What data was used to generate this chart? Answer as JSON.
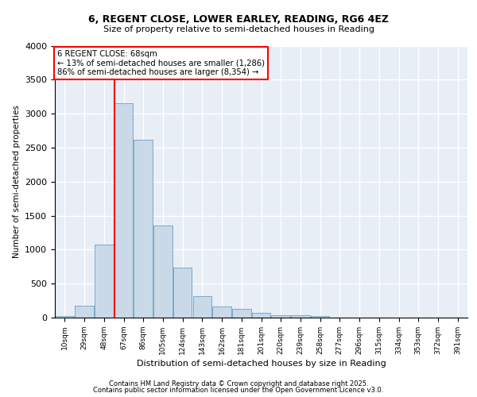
{
  "title1": "6, REGENT CLOSE, LOWER EARLEY, READING, RG6 4EZ",
  "title2": "Size of property relative to semi-detached houses in Reading",
  "xlabel": "Distribution of semi-detached houses by size in Reading",
  "ylabel": "Number of semi-detached properties",
  "bar_labels": [
    "10sqm",
    "29sqm",
    "48sqm",
    "67sqm",
    "86sqm",
    "105sqm",
    "124sqm",
    "143sqm",
    "162sqm",
    "181sqm",
    "201sqm",
    "220sqm",
    "239sqm",
    "258sqm",
    "277sqm",
    "296sqm",
    "315sqm",
    "334sqm",
    "353sqm",
    "372sqm",
    "391sqm"
  ],
  "bar_values": [
    20,
    170,
    1080,
    3150,
    2620,
    1360,
    740,
    310,
    160,
    130,
    70,
    35,
    30,
    20,
    0,
    0,
    0,
    0,
    0,
    0,
    0
  ],
  "bar_color": "#c9d9e8",
  "bar_edge_color": "#7aaac8",
  "background_color": "#e8eef6",
  "grid_color": "#ffffff",
  "vline_x_idx": 3,
  "vline_color": "red",
  "annotation_box_text": "6 REGENT CLOSE: 68sqm\n← 13% of semi-detached houses are smaller (1,286)\n86% of semi-detached houses are larger (8,354) →",
  "annotation_box_color": "red",
  "footer1": "Contains HM Land Registry data © Crown copyright and database right 2025.",
  "footer2": "Contains public sector information licensed under the Open Government Licence v3.0.",
  "ylim": [
    0,
    4000
  ],
  "yticks": [
    0,
    500,
    1000,
    1500,
    2000,
    2500,
    3000,
    3500,
    4000
  ]
}
